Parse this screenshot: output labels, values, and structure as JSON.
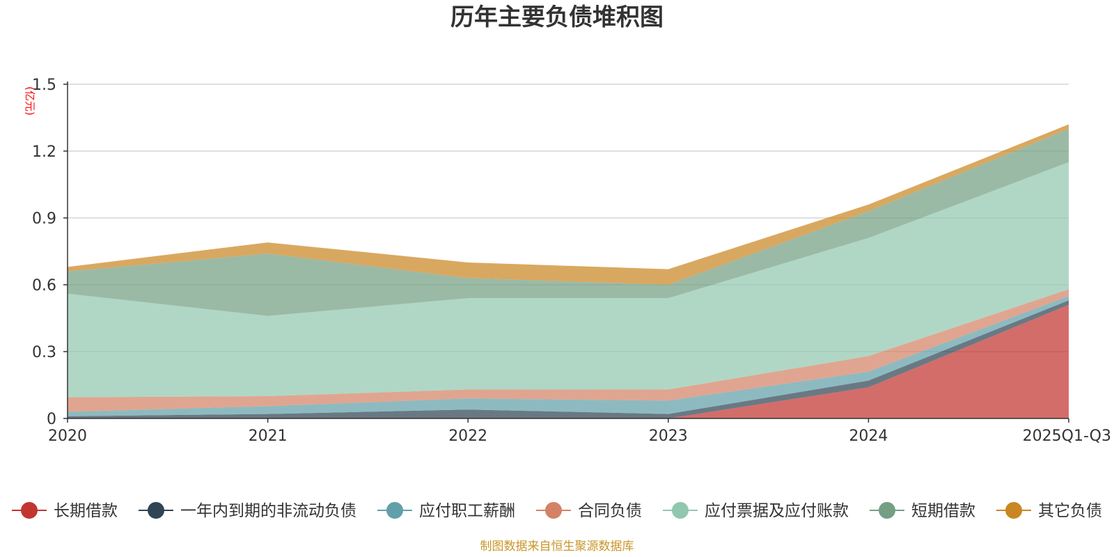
{
  "chart_data": {
    "type": "area",
    "stacked": true,
    "title": "历年主要负债堆积图",
    "y_unit": "(亿元)",
    "categories": [
      "2020",
      "2021",
      "2022",
      "2023",
      "2024",
      "2025Q1-Q3"
    ],
    "ylim": [
      0,
      1.5
    ],
    "y_ticks": [
      "0",
      "0.3",
      "0.6",
      "0.9",
      "1.2",
      "1.5"
    ],
    "grid": true,
    "legend_position": "bottom",
    "series": [
      {
        "name": "长期借款",
        "color": "#c23531",
        "values": [
          0,
          0,
          0,
          0,
          0.14,
          0.51
        ]
      },
      {
        "name": "一年内到期的非流动负债",
        "color": "#2f4554",
        "values": [
          0.01,
          0.02,
          0.04,
          0.02,
          0.03,
          0.02
        ]
      },
      {
        "name": "应付职工薪酬",
        "color": "#61a0a8",
        "values": [
          0.02,
          0.035,
          0.05,
          0.06,
          0.04,
          0.02
        ]
      },
      {
        "name": "合同负债",
        "color": "#d48265",
        "values": [
          0.065,
          0.045,
          0.04,
          0.05,
          0.07,
          0.03
        ]
      },
      {
        "name": "应付票据及应付账款",
        "color": "#91c7ae",
        "values": [
          0.465,
          0.36,
          0.41,
          0.41,
          0.53,
          0.57
        ]
      },
      {
        "name": "短期借款",
        "color": "#749f83",
        "values": [
          0.1,
          0.28,
          0.09,
          0.06,
          0.12,
          0.15
        ]
      },
      {
        "name": "其它负债",
        "color": "#ca8622",
        "values": [
          0.02,
          0.05,
          0.07,
          0.07,
          0.03,
          0.02
        ]
      }
    ],
    "source_note": "制图数据来自恒生聚源数据库",
    "unit_color": "#ff0000",
    "source_color": "#c8962a",
    "axis_color": "#333333",
    "grid_color": "#cccccc"
  }
}
